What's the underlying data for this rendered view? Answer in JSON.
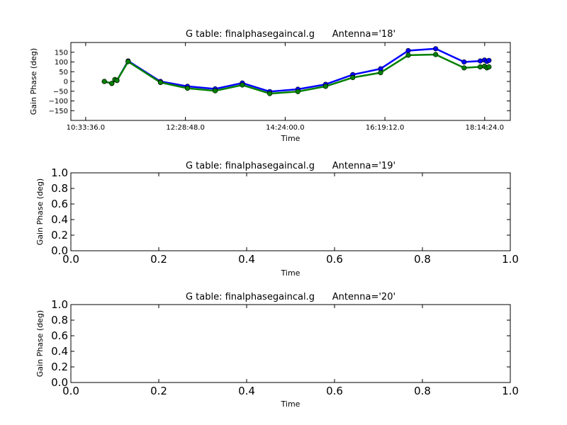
{
  "chart_data": [
    {
      "type": "line",
      "title": "G table: finalphasegaincal.g      Antenna='18'",
      "xlabel": "Time",
      "ylabel": "Gain Phase (deg)",
      "x_ticks": [
        "10:33:36.0",
        "12:28:48.0",
        "14:24:00.0",
        "16:19:12.0",
        "18:14:24.0"
      ],
      "x_tick_seconds": [
        38016,
        44928,
        51840,
        58752,
        65664
      ],
      "xlim_seconds": [
        36990,
        67440
      ],
      "ylim": [
        -200,
        200
      ],
      "y_ticks": [
        150,
        100,
        50,
        0,
        -50,
        -100,
        -150
      ],
      "y_tick_labels": [
        "150",
        "100",
        "50",
        "0",
        "−50",
        "−100",
        "−150"
      ],
      "series": [
        {
          "color": "#0000ff",
          "x": [
            "10:55:10",
            "11:03:50",
            "11:07:20",
            "11:09:40",
            "11:22:40",
            "12:00:00",
            "12:31:10",
            "13:03:10",
            "13:34:30",
            "14:06:10",
            "14:38:40",
            "15:10:40",
            "15:42:00",
            "16:14:10",
            "16:46:10",
            "17:17:50",
            "17:50:40",
            "18:09:20",
            "18:14:10",
            "18:17:00",
            "18:19:20"
          ],
          "y": [
            0,
            -10,
            10,
            5,
            105,
            0,
            -25,
            -38,
            -8,
            -52,
            -40,
            -15,
            35,
            65,
            158,
            168,
            100,
            105,
            110,
            103,
            108
          ]
        },
        {
          "color": "#008000",
          "x": [
            "10:55:10",
            "11:03:50",
            "11:07:20",
            "11:09:40",
            "11:22:40",
            "12:00:00",
            "12:31:10",
            "13:03:10",
            "13:34:30",
            "14:06:10",
            "14:38:40",
            "15:10:40",
            "15:42:00",
            "16:14:10",
            "16:46:10",
            "17:17:50",
            "17:50:40",
            "18:09:20",
            "18:14:10",
            "18:17:00",
            "18:19:20"
          ],
          "y": [
            0,
            -10,
            10,
            5,
            102,
            -5,
            -35,
            -48,
            -18,
            -62,
            -52,
            -25,
            20,
            45,
            135,
            138,
            70,
            75,
            78,
            70,
            75
          ]
        }
      ]
    },
    {
      "type": "line",
      "title": "G table: finalphasegaincal.g      Antenna='19'",
      "xlabel": "Time",
      "ylabel": "Gain Phase (deg)",
      "xlim": [
        0.0,
        1.0
      ],
      "ylim": [
        0.0,
        1.0
      ],
      "x_ticks": [
        "0.0",
        "0.2",
        "0.4",
        "0.6",
        "0.8",
        "1.0"
      ],
      "y_ticks": [
        "1.0",
        "0.8",
        "0.6",
        "0.4",
        "0.2",
        "0.0"
      ],
      "series": []
    },
    {
      "type": "line",
      "title": "G table: finalphasegaincal.g      Antenna='20'",
      "xlabel": "Time",
      "ylabel": "Gain Phase (deg)",
      "xlim": [
        0.0,
        1.0
      ],
      "ylim": [
        0.0,
        1.0
      ],
      "x_ticks": [
        "0.0",
        "0.2",
        "0.4",
        "0.6",
        "0.8",
        "1.0"
      ],
      "y_ticks": [
        "1.0",
        "0.8",
        "0.6",
        "0.4",
        "0.2",
        "0.0"
      ],
      "series": []
    }
  ]
}
